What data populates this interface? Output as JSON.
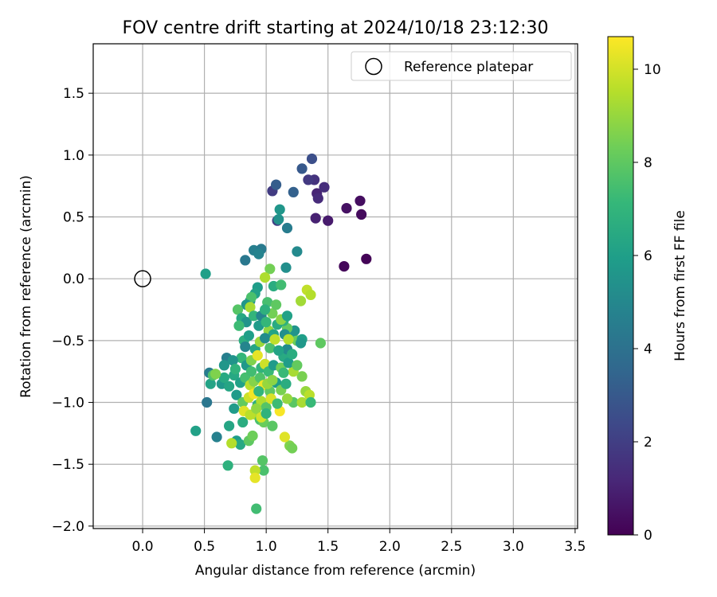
{
  "chart_data": {
    "type": "scatter",
    "title": "FOV centre drift starting at 2024/10/18 23:12:30",
    "xlabel": "Angular distance from reference (arcmin)",
    "ylabel": "Rotation from reference (arcmin)",
    "xlim": [
      -0.4,
      3.52
    ],
    "ylim": [
      -2.02,
      1.9
    ],
    "xticks": [
      "0.0",
      "0.5",
      "1.0",
      "1.5",
      "2.0",
      "2.5",
      "3.0",
      "3.5"
    ],
    "yticks": [
      "−2.0",
      "−1.5",
      "−1.0",
      "−0.5",
      "0.0",
      "0.5",
      "1.0",
      "1.5"
    ],
    "grid": true,
    "legend": {
      "placement": "top-right",
      "label": "Reference platepar",
      "marker": "open-circle"
    },
    "reference": {
      "x": 0.0,
      "y": 0.0
    },
    "colorbar": {
      "label": "Hours from first FF file",
      "min": 0,
      "max": 10.7,
      "ticks": [
        "0",
        "2",
        "4",
        "6",
        "8",
        "10"
      ],
      "colormap": "viridis",
      "stops": [
        "#440154",
        "#482878",
        "#3e4989",
        "#31688e",
        "#26828e",
        "#1f9e89",
        "#35b779",
        "#6ece58",
        "#b5de2b",
        "#fde725"
      ]
    },
    "points": [
      [
        1.81,
        0.16,
        0.1
      ],
      [
        1.63,
        0.1,
        0.2
      ],
      [
        1.77,
        0.52,
        0.3
      ],
      [
        1.76,
        0.63,
        0.4
      ],
      [
        1.65,
        0.57,
        0.5
      ],
      [
        1.5,
        0.47,
        0.8
      ],
      [
        1.4,
        0.49,
        1.0
      ],
      [
        1.41,
        0.69,
        1.1
      ],
      [
        1.42,
        0.65,
        1.3
      ],
      [
        1.47,
        0.74,
        1.4
      ],
      [
        1.39,
        0.8,
        1.6
      ],
      [
        1.34,
        0.8,
        1.8
      ],
      [
        1.05,
        0.71,
        1.9
      ],
      [
        1.09,
        0.47,
        2.0
      ],
      [
        1.37,
        0.97,
        2.6
      ],
      [
        1.29,
        0.89,
        3.0
      ],
      [
        1.08,
        0.76,
        3.2
      ],
      [
        1.22,
        0.7,
        3.3
      ],
      [
        0.83,
        0.15,
        4.3
      ],
      [
        0.9,
        0.23,
        4.6
      ],
      [
        0.96,
        0.24,
        4.4
      ],
      [
        0.94,
        0.2,
        4.8
      ],
      [
        1.17,
        0.41,
        4.5
      ],
      [
        1.1,
        0.48,
        5.4
      ],
      [
        1.11,
        0.56,
        5.6
      ],
      [
        1.25,
        0.22,
        5.1
      ],
      [
        1.16,
        0.09,
        5.3
      ],
      [
        0.51,
        0.04,
        6.0
      ],
      [
        0.43,
        -1.23,
        6.1
      ],
      [
        0.52,
        -1.0,
        4.2
      ],
      [
        0.54,
        -0.76,
        4.5
      ],
      [
        0.55,
        -0.85,
        6.2
      ],
      [
        0.6,
        -1.28,
        4.7
      ],
      [
        0.68,
        -0.64,
        4.6
      ],
      [
        0.66,
        -0.7,
        5.6
      ],
      [
        0.7,
        -1.19,
        6.3
      ],
      [
        0.74,
        -1.05,
        5.8
      ],
      [
        0.76,
        -1.31,
        5.9
      ],
      [
        0.79,
        -1.34,
        6.4
      ],
      [
        0.81,
        -1.16,
        6.6
      ],
      [
        0.69,
        -1.51,
        6.8
      ],
      [
        0.72,
        -1.33,
        9.5
      ],
      [
        0.86,
        -1.31,
        8.0
      ],
      [
        0.89,
        -1.27,
        8.3
      ],
      [
        0.92,
        -1.1,
        9.3
      ],
      [
        0.95,
        -1.14,
        7.6
      ],
      [
        0.98,
        -1.16,
        8.2
      ],
      [
        0.97,
        -1.47,
        7.8
      ],
      [
        0.98,
        -1.55,
        7.6
      ],
      [
        0.91,
        -1.55,
        9.7
      ],
      [
        0.91,
        -1.61,
        10.3
      ],
      [
        0.92,
        -1.86,
        7.4
      ],
      [
        1.05,
        -1.19,
        7.9
      ],
      [
        1.19,
        -1.35,
        8.6
      ],
      [
        1.21,
        -1.37,
        8.4
      ],
      [
        1.15,
        -1.28,
        10.2
      ],
      [
        1.11,
        -1.07,
        10.6
      ],
      [
        1.22,
        -1.0,
        7.9
      ],
      [
        1.29,
        -1.0,
        9.3
      ],
      [
        1.32,
        -0.91,
        9.0
      ],
      [
        1.35,
        -0.94,
        9.6
      ],
      [
        1.36,
        -1.0,
        7.2
      ],
      [
        1.17,
        -0.97,
        9.0
      ],
      [
        1.29,
        -0.79,
        8.5
      ],
      [
        1.22,
        -0.75,
        9.3
      ],
      [
        1.14,
        -0.63,
        6.5
      ],
      [
        1.17,
        -0.57,
        5.2
      ],
      [
        1.2,
        -0.48,
        6.9
      ],
      [
        1.25,
        -0.5,
        8.2
      ],
      [
        1.29,
        -0.49,
        6.0
      ],
      [
        1.28,
        -0.52,
        5.7
      ],
      [
        1.44,
        -0.52,
        8.0
      ],
      [
        1.28,
        -0.18,
        9.2
      ],
      [
        1.33,
        -0.09,
        9.7
      ],
      [
        1.36,
        -0.13,
        9.5
      ],
      [
        1.23,
        -0.42,
        5.5
      ],
      [
        1.17,
        -0.4,
        8.1
      ],
      [
        1.14,
        -0.34,
        6.8
      ],
      [
        1.05,
        -0.28,
        8.4
      ],
      [
        1.01,
        -0.19,
        7.5
      ],
      [
        1.06,
        -0.06,
        6.6
      ],
      [
        1.12,
        -0.05,
        7.4
      ],
      [
        1.03,
        0.08,
        8.4
      ],
      [
        0.99,
        0.01,
        9.4
      ],
      [
        0.93,
        -0.07,
        5.9
      ],
      [
        0.91,
        -0.12,
        6.1
      ],
      [
        0.87,
        -0.18,
        5.4
      ],
      [
        0.88,
        -0.15,
        7.6
      ],
      [
        0.84,
        -0.21,
        5.6
      ],
      [
        0.77,
        -0.25,
        7.8
      ],
      [
        0.8,
        -0.32,
        6.4
      ],
      [
        0.84,
        -0.35,
        5.5
      ],
      [
        0.87,
        -0.23,
        9.3
      ],
      [
        0.9,
        -0.3,
        7.0
      ],
      [
        0.94,
        -0.38,
        5.8
      ],
      [
        0.96,
        -0.3,
        4.9
      ],
      [
        0.99,
        -0.25,
        6.8
      ],
      [
        1.02,
        -0.42,
        8.9
      ],
      [
        1.0,
        -0.35,
        7.1
      ],
      [
        1.06,
        -0.45,
        6.2
      ],
      [
        1.09,
        -0.37,
        6.5
      ],
      [
        1.08,
        -0.21,
        8.0
      ],
      [
        1.12,
        -0.33,
        8.8
      ],
      [
        1.15,
        -0.45,
        5.3
      ],
      [
        1.18,
        -0.49,
        9.5
      ],
      [
        0.78,
        -0.38,
        7.3
      ],
      [
        0.82,
        -0.5,
        6.7
      ],
      [
        0.86,
        -0.46,
        6.0
      ],
      [
        0.83,
        -0.55,
        4.9
      ],
      [
        0.91,
        -0.57,
        6.3
      ],
      [
        0.95,
        -0.51,
        9.1
      ],
      [
        0.99,
        -0.48,
        5.2
      ],
      [
        1.03,
        -0.56,
        7.6
      ],
      [
        1.07,
        -0.49,
        9.7
      ],
      [
        1.1,
        -0.58,
        6.2
      ],
      [
        0.8,
        -0.64,
        7.1
      ],
      [
        0.84,
        -0.7,
        5.7
      ],
      [
        0.88,
        -0.66,
        8.6
      ],
      [
        0.93,
        -0.62,
        10.3
      ],
      [
        0.96,
        -0.72,
        6.9
      ],
      [
        0.99,
        -0.69,
        9.9
      ],
      [
        1.02,
        -0.75,
        7.2
      ],
      [
        1.06,
        -0.7,
        5.8
      ],
      [
        1.12,
        -0.72,
        8.3
      ],
      [
        0.74,
        -0.78,
        6.4
      ],
      [
        0.79,
        -0.84,
        6.1
      ],
      [
        0.83,
        -0.8,
        7.5
      ],
      [
        0.87,
        -0.86,
        9.6
      ],
      [
        0.9,
        -0.83,
        8.7
      ],
      [
        0.95,
        -0.8,
        7.7
      ],
      [
        0.98,
        -0.86,
        10.4
      ],
      [
        1.03,
        -0.91,
        8.0
      ],
      [
        1.08,
        -0.84,
        5.9
      ],
      [
        1.12,
        -0.9,
        8.5
      ],
      [
        1.16,
        -0.85,
        6.6
      ],
      [
        0.76,
        -0.94,
        5.8
      ],
      [
        0.81,
        -1.0,
        8.1
      ],
      [
        0.86,
        -0.96,
        9.9
      ],
      [
        0.9,
        -0.93,
        10.5
      ],
      [
        0.93,
        -1.02,
        6.7
      ],
      [
        0.96,
        -0.99,
        9.4
      ],
      [
        1.0,
        -1.04,
        7.8
      ],
      [
        1.04,
        -0.97,
        10.1
      ],
      [
        1.09,
        -1.01,
        7.3
      ],
      [
        0.82,
        -1.07,
        10.2
      ],
      [
        0.87,
        -1.1,
        9.6
      ],
      [
        0.92,
        -1.05,
        8.9
      ],
      [
        0.96,
        -1.12,
        10.0
      ],
      [
        1.0,
        -1.09,
        6.9
      ],
      [
        0.64,
        -0.85,
        5.7
      ],
      [
        0.66,
        -0.8,
        6.5
      ],
      [
        0.7,
        -0.87,
        6.3
      ],
      [
        0.57,
        -0.78,
        7.7
      ],
      [
        0.59,
        -0.77,
        8.6
      ],
      [
        0.73,
        -0.66,
        5.5
      ],
      [
        0.75,
        -0.73,
        6.9
      ],
      [
        0.88,
        -0.75,
        7.4
      ],
      [
        0.94,
        -0.91,
        7.0
      ],
      [
        1.01,
        -0.85,
        9.0
      ],
      [
        1.05,
        -0.82,
        8.8
      ],
      [
        1.14,
        -0.76,
        7.2
      ],
      [
        1.18,
        -0.68,
        5.9
      ],
      [
        1.21,
        -0.61,
        6.6
      ],
      [
        1.25,
        -0.7,
        8.1
      ],
      [
        1.17,
        -0.3,
        6.1
      ]
    ]
  }
}
